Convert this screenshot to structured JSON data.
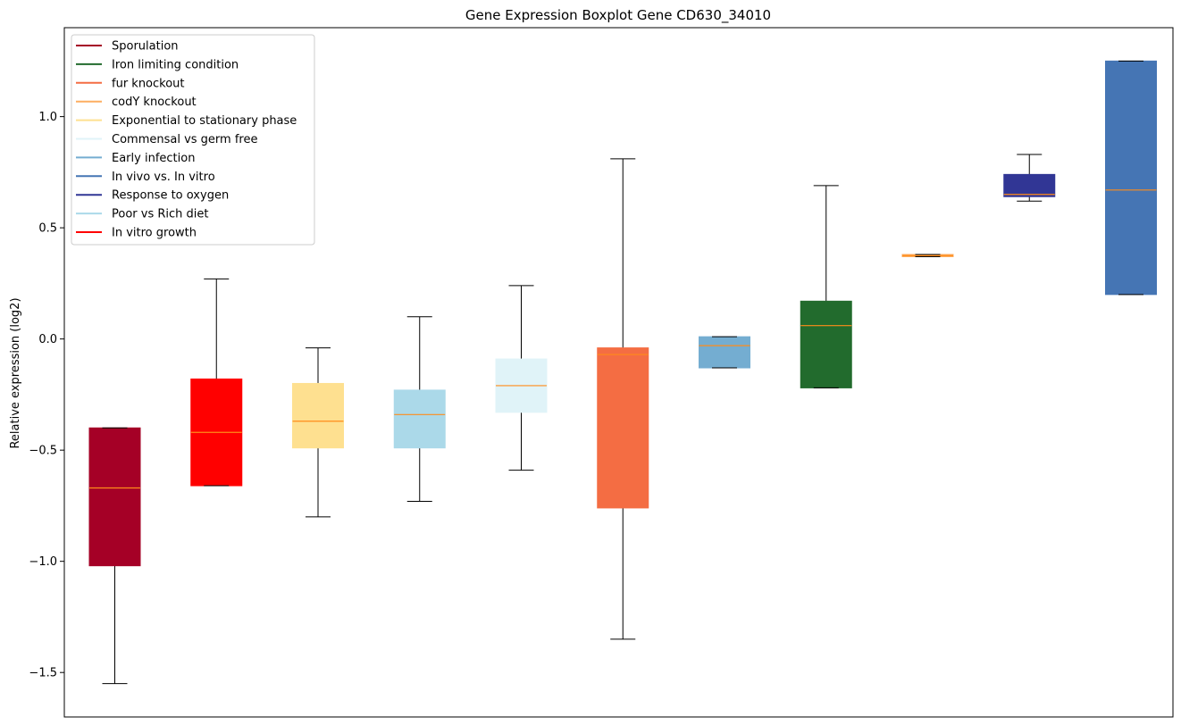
{
  "chart_data": {
    "type": "boxplot",
    "title": "Gene Expression Boxplot Gene CD630_34010",
    "xlabel": "",
    "ylabel": "Relative expression (log2)",
    "ylim": [
      -1.7,
      1.4
    ],
    "yticks": [
      -1.5,
      -1.0,
      -0.5,
      0.0,
      0.5,
      1.0
    ],
    "ytick_labels": [
      "−1.5",
      "−1.0",
      "−0.5",
      "0.0",
      "0.5",
      "1.0"
    ],
    "median_color": "#ff8c1a",
    "whisker_color": "#000000",
    "legend": {
      "location": "upper-left",
      "entries": [
        {
          "label": "Sporulation",
          "color": "#a50026"
        },
        {
          "label": "Iron limiting condition",
          "color": "#226b2d"
        },
        {
          "label": "fur knockout",
          "color": "#f46d43"
        },
        {
          "label": "codY knockout",
          "color": "#fdae61"
        },
        {
          "label": "Exponential to stationary phase",
          "color": "#fee090"
        },
        {
          "label": "Commensal vs germ free",
          "color": "#e0f3f8"
        },
        {
          "label": "Early infection",
          "color": "#74add1"
        },
        {
          "label": "In vivo vs. In vitro",
          "color": "#4575b4"
        },
        {
          "label": "Response to oxygen",
          "color": "#313695"
        },
        {
          "label": "Poor vs Rich diet",
          "color": "#abd9e9"
        },
        {
          "label": "In vitro growth",
          "color": "#ff0000"
        }
      ]
    },
    "boxes": [
      {
        "group": "Sporulation",
        "color": "#a50026",
        "whisker_low": -1.55,
        "q1": -1.02,
        "median": -0.67,
        "q3": -0.4,
        "whisker_high": -0.4
      },
      {
        "group": "In vitro growth",
        "color": "#ff0000",
        "whisker_low": -0.66,
        "q1": -0.66,
        "median": -0.42,
        "q3": -0.18,
        "whisker_high": 0.27
      },
      {
        "group": "Exponential to stationary phase",
        "color": "#fee090",
        "whisker_low": -0.8,
        "q1": -0.49,
        "median": -0.37,
        "q3": -0.2,
        "whisker_high": -0.04
      },
      {
        "group": "Poor vs Rich diet",
        "color": "#abd9e9",
        "whisker_low": -0.73,
        "q1": -0.49,
        "median": -0.34,
        "q3": -0.23,
        "whisker_high": 0.1
      },
      {
        "group": "Commensal vs germ free",
        "color": "#e0f3f8",
        "whisker_low": -0.59,
        "q1": -0.33,
        "median": -0.21,
        "q3": -0.09,
        "whisker_high": 0.24
      },
      {
        "group": "fur knockout",
        "color": "#f46d43",
        "whisker_low": -1.35,
        "q1": -0.76,
        "median": -0.07,
        "q3": -0.04,
        "whisker_high": 0.81
      },
      {
        "group": "Early infection",
        "color": "#74add1",
        "whisker_low": -0.13,
        "q1": -0.13,
        "median": -0.03,
        "q3": 0.01,
        "whisker_high": 0.01
      },
      {
        "group": "Iron limiting condition",
        "color": "#226b2d",
        "whisker_low": -0.22,
        "q1": -0.22,
        "median": 0.06,
        "q3": 0.17,
        "whisker_high": 0.69
      },
      {
        "group": "codY knockout",
        "color": "#fdae61",
        "whisker_low": 0.37,
        "q1": 0.37,
        "median": 0.375,
        "q3": 0.38,
        "whisker_high": 0.38
      },
      {
        "group": "Response to oxygen",
        "color": "#313695",
        "whisker_low": 0.62,
        "q1": 0.64,
        "median": 0.65,
        "q3": 0.74,
        "whisker_high": 0.83
      },
      {
        "group": "In vivo vs. In vitro",
        "color": "#4575b4",
        "whisker_low": 0.2,
        "q1": 0.2,
        "median": 0.67,
        "q3": 1.25,
        "whisker_high": 1.25
      }
    ]
  }
}
